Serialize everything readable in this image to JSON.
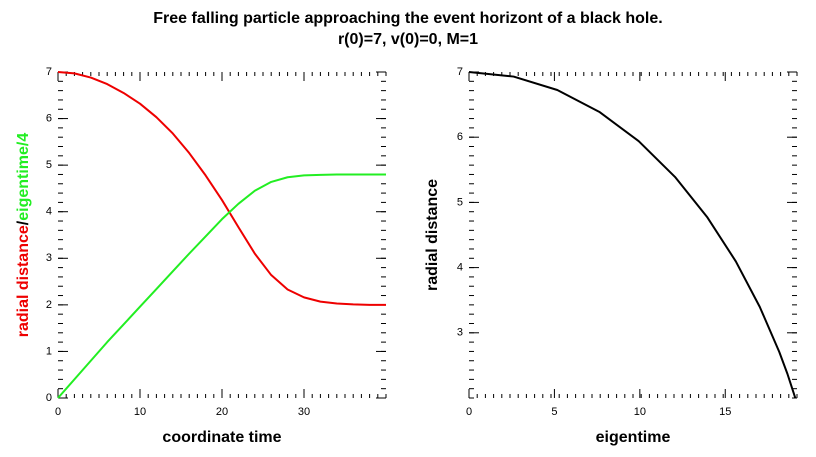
{
  "chart_data": [
    {
      "type": "line",
      "title": "Free falling particle approaching the event horizont of a black hole.",
      "subtitle": "r(0)=7, v(0)=0, M=1",
      "xlabel": "coordinate time",
      "ylabel_separator": "/",
      "x": [
        0,
        2,
        4,
        6,
        8,
        10,
        12,
        14,
        16,
        18,
        20,
        22,
        24,
        26,
        28,
        30,
        32,
        34,
        36,
        38,
        40
      ],
      "series": [
        {
          "name": "radial distance",
          "color": "#ee0000",
          "values": [
            7.0,
            6.97,
            6.88,
            6.74,
            6.55,
            6.32,
            6.03,
            5.68,
            5.26,
            4.78,
            4.25,
            3.67,
            3.1,
            2.64,
            2.33,
            2.16,
            2.07,
            2.03,
            2.01,
            2.0,
            2.0
          ]
        },
        {
          "name": "eigentime/4",
          "color": "#22ee22",
          "values": [
            0,
            0.4,
            0.8,
            1.2,
            1.58,
            1.96,
            2.34,
            2.72,
            3.1,
            3.47,
            3.84,
            4.17,
            4.45,
            4.64,
            4.74,
            4.78,
            4.79,
            4.8,
            4.8,
            4.8,
            4.8
          ]
        }
      ],
      "xlim": [
        0,
        40
      ],
      "xticks": [
        0,
        10,
        20,
        30
      ],
      "ylim": [
        0,
        7
      ],
      "yticks": [
        0,
        1,
        2,
        3,
        4,
        5,
        6,
        7
      ]
    },
    {
      "type": "line",
      "xlabel": "eigentime",
      "ylabel": "radial distance",
      "x": [
        0,
        2.61,
        5.169,
        7.626,
        9.936,
        12.058,
        13.96,
        15.62,
        17.02,
        18.164,
        18.64,
        19.1
      ],
      "series": [
        {
          "color": "#000000",
          "values": [
            7.0,
            6.93,
            6.724,
            6.389,
            5.939,
            5.391,
            4.768,
            4.095,
            3.398,
            2.705,
            2.37,
            2.0
          ]
        }
      ],
      "xlim": [
        0,
        19.2
      ],
      "xticks": [
        0,
        5,
        10,
        15
      ],
      "ylim": [
        2,
        7
      ],
      "yticks": [
        3,
        4,
        5,
        6,
        7
      ]
    }
  ]
}
